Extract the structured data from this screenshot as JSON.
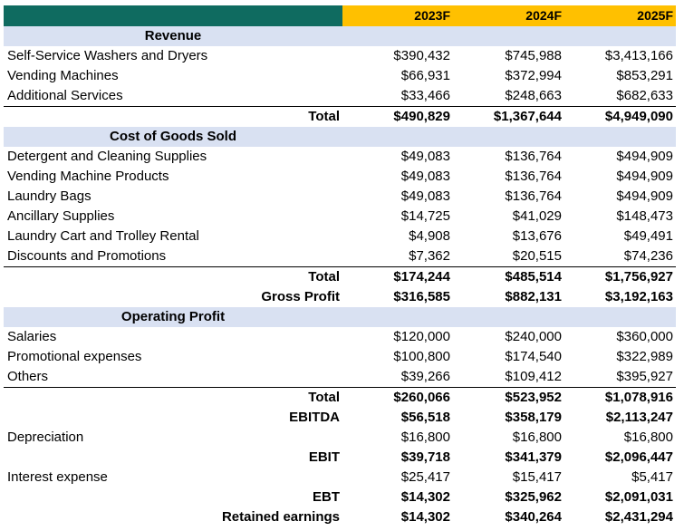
{
  "header": {
    "years": [
      "2023F",
      "2024F",
      "2025F"
    ]
  },
  "sections": {
    "revenue": {
      "title": "Revenue",
      "rows": [
        {
          "label": "Self-Service Washers and Dryers",
          "values": [
            "$390,432",
            "$745,988",
            "$3,413,166"
          ]
        },
        {
          "label": "Vending Machines",
          "values": [
            "$66,931",
            "$372,994",
            "$853,291"
          ]
        },
        {
          "label": "Additional Services",
          "values": [
            "$33,466",
            "$248,663",
            "$682,633"
          ]
        }
      ],
      "total": {
        "label": "Total",
        "values": [
          "$490,829",
          "$1,367,644",
          "$4,949,090"
        ]
      }
    },
    "cogs": {
      "title": "Cost of Goods Sold",
      "rows": [
        {
          "label": "Detergent and Cleaning Supplies",
          "values": [
            "$49,083",
            "$136,764",
            "$494,909"
          ]
        },
        {
          "label": "Vending Machine Products",
          "values": [
            "$49,083",
            "$136,764",
            "$494,909"
          ]
        },
        {
          "label": "Laundry Bags",
          "values": [
            "$49,083",
            "$136,764",
            "$494,909"
          ]
        },
        {
          "label": "Ancillary Supplies",
          "values": [
            "$14,725",
            "$41,029",
            "$148,473"
          ]
        },
        {
          "label": "Laundry Cart and Trolley Rental",
          "values": [
            "$4,908",
            "$13,676",
            "$49,491"
          ]
        },
        {
          "label": "Discounts and Promotions",
          "values": [
            "$7,362",
            "$20,515",
            "$74,236"
          ]
        }
      ],
      "total": {
        "label": "Total",
        "values": [
          "$174,244",
          "$485,514",
          "$1,756,927"
        ]
      },
      "gross_profit": {
        "label": "Gross Profit",
        "values": [
          "$316,585",
          "$882,131",
          "$3,192,163"
        ]
      }
    },
    "opex": {
      "title": "Operating Profit",
      "rows": [
        {
          "label": "Salaries",
          "values": [
            "$120,000",
            "$240,000",
            "$360,000"
          ]
        },
        {
          "label": "Promotional expenses",
          "values": [
            "$100,800",
            "$174,540",
            "$322,989"
          ]
        },
        {
          "label": "Others",
          "values": [
            "$39,266",
            "$109,412",
            "$395,927"
          ]
        }
      ],
      "total": {
        "label": "Total",
        "values": [
          "$260,066",
          "$523,952",
          "$1,078,916"
        ]
      },
      "ebitda": {
        "label": "EBITDA",
        "values": [
          "$56,518",
          "$358,179",
          "$2,113,247"
        ]
      },
      "depreciation": {
        "label": "Depreciation",
        "values": [
          "$16,800",
          "$16,800",
          "$16,800"
        ]
      },
      "ebit": {
        "label": "EBIT",
        "values": [
          "$39,718",
          "$341,379",
          "$2,096,447"
        ]
      },
      "interest": {
        "label": "Interest expense",
        "values": [
          "$25,417",
          "$15,417",
          "$5,417"
        ]
      },
      "ebt": {
        "label": "EBT",
        "values": [
          "$14,302",
          "$325,962",
          "$2,091,031"
        ]
      },
      "retained": {
        "label": "Retained earnings",
        "values": [
          "$14,302",
          "$340,264",
          "$2,431,294"
        ]
      }
    }
  },
  "colors": {
    "header_corner": "#0f6b60",
    "header_year": "#ffc000",
    "section_band": "#d9e1f2"
  }
}
